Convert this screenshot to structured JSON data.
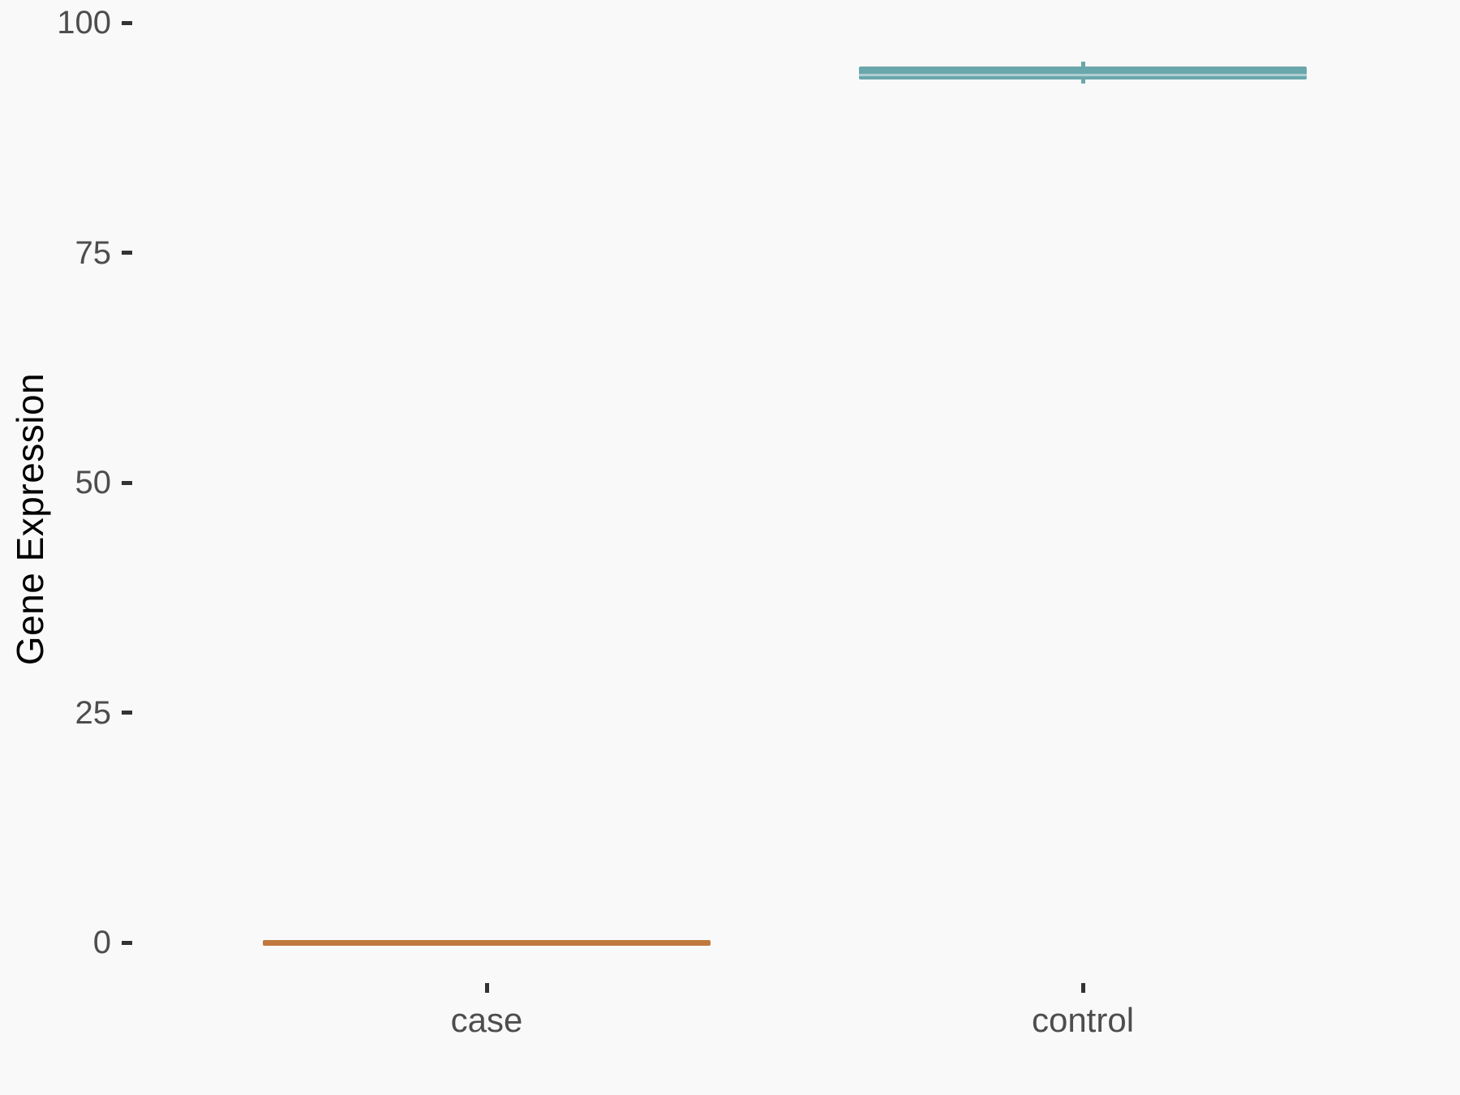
{
  "chart_data": {
    "type": "boxplot",
    "title": "",
    "xlabel": "",
    "ylabel": "Gene Expression",
    "categories": [
      "case",
      "control"
    ],
    "series": [
      {
        "name": "case",
        "color": "#C0783E",
        "min": 0,
        "q1": 0,
        "median": 0,
        "q3": 0,
        "max": 0
      },
      {
        "name": "control",
        "color": "#6AA7AD",
        "min": 93.4,
        "q1": 93.8,
        "median": 94.3,
        "q3": 95.2,
        "max": 95.8
      }
    ],
    "yticks": [
      0,
      25,
      50,
      75,
      100
    ],
    "ylim": [
      0,
      102.5
    ],
    "grid": false,
    "legend": false,
    "background": "#f9f9f9",
    "tick_mark_color": "#333333",
    "tick_label_color": "#4d4d4d",
    "axis_title_color": "#000000"
  }
}
